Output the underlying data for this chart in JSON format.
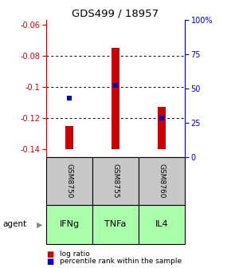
{
  "title": "GDS499 / 18957",
  "samples": [
    "GSM8750",
    "GSM8755",
    "GSM8760"
  ],
  "agents": [
    "IFNg",
    "TNFa",
    "IL4"
  ],
  "bar_tops": [
    -0.125,
    -0.075,
    -0.113
  ],
  "bar_bottom": -0.14,
  "bar_color": "#cc0000",
  "bar_width": 0.18,
  "percentile_values": [
    -0.107,
    -0.099,
    -0.12
  ],
  "percentile_color": "#0000cc",
  "ylim": [
    -0.145,
    -0.057
  ],
  "yticks_left": [
    -0.14,
    -0.12,
    -0.1,
    -0.08,
    -0.06
  ],
  "ytick_left_labels": [
    "-0.14",
    "-0.12",
    "-0.1",
    "-0.08",
    "-0.06"
  ],
  "yticks_right_pct": [
    0.0,
    0.25,
    0.5,
    0.75,
    1.0
  ],
  "yticks_right_labels": [
    "0",
    "25",
    "50",
    "75",
    "100%"
  ],
  "left_axis_color": "#cc0000",
  "right_axis_color": "#0000cc",
  "sample_box_color": "#c8c8c8",
  "agent_box_color": "#aaffaa",
  "legend_log_color": "#cc0000",
  "legend_pct_color": "#0000cc",
  "legend_log_label": "log ratio",
  "legend_pct_label": "percentile rank within the sample",
  "agent_label": "agent",
  "x_positions": [
    0,
    1,
    2
  ]
}
